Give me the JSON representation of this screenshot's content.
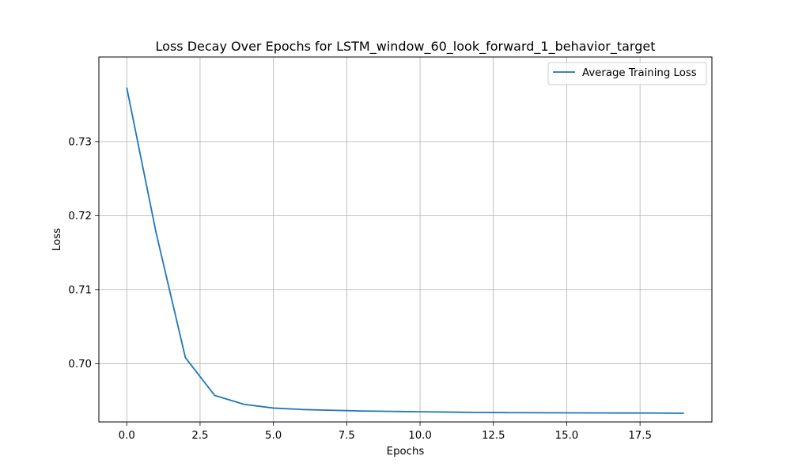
{
  "chart_data": {
    "type": "line",
    "title": "Loss Decay Over Epochs for LSTM_window_60_look_forward_1_behavior_target",
    "xlabel": "Epochs",
    "ylabel": "Loss",
    "xlim": [
      -0.95,
      19.95
    ],
    "ylim": [
      0.69212,
      0.74143
    ],
    "xticks": [
      0,
      2.5,
      5,
      7.5,
      10,
      12.5,
      15,
      17.5
    ],
    "xtick_labels": [
      "0.0",
      "2.5",
      "5.0",
      "7.5",
      "10.0",
      "12.5",
      "15.0",
      "17.5"
    ],
    "yticks": [
      0.7,
      0.71,
      0.72,
      0.73
    ],
    "ytick_labels": [
      "0.70",
      "0.71",
      "0.72",
      "0.73"
    ],
    "grid": true,
    "legend_position": "top-right",
    "series": [
      {
        "name": "Average Training Loss",
        "color": "#1f77b4",
        "x": [
          0,
          1,
          2,
          3,
          4,
          5,
          6,
          7,
          8,
          9,
          10,
          11,
          12,
          13,
          14,
          15,
          16,
          17,
          18,
          19
        ],
        "y": [
          0.7373,
          0.7177,
          0.7008,
          0.6957,
          0.6945,
          0.694,
          0.6938,
          0.6937,
          0.6936,
          0.69355,
          0.6935,
          0.69345,
          0.6934,
          0.69338,
          0.69336,
          0.69335,
          0.69334,
          0.69333,
          0.69332,
          0.6933
        ]
      }
    ]
  }
}
